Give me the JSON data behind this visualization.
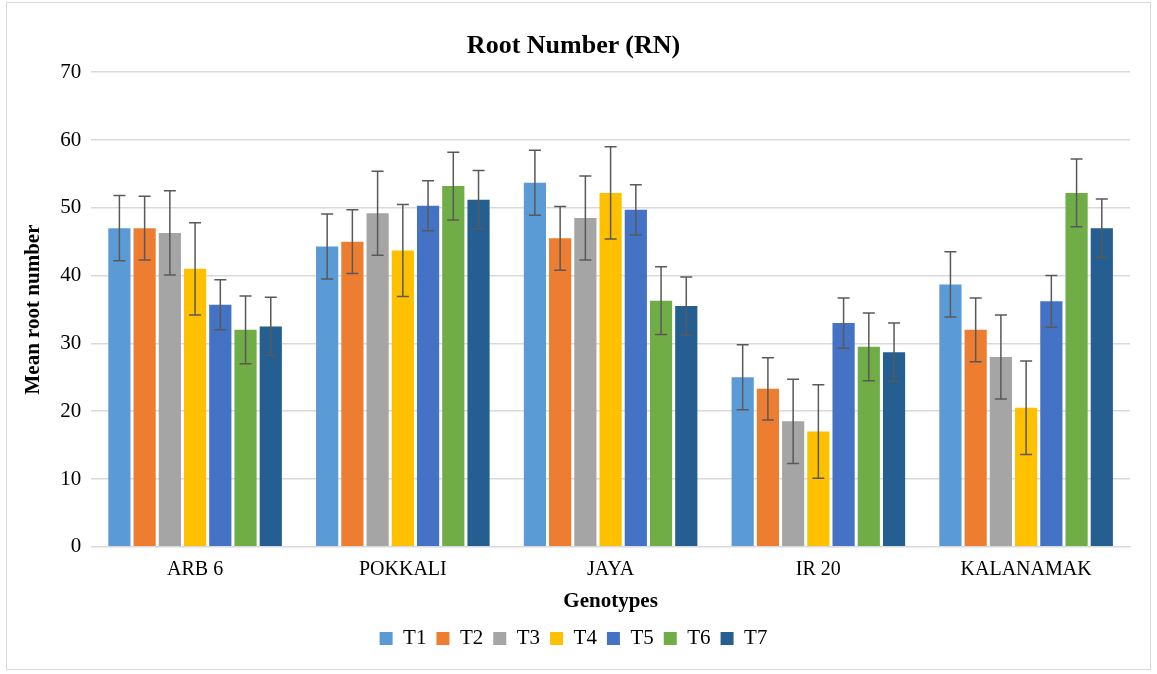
{
  "chart_data": {
    "type": "bar",
    "title": "Root Number (RN)",
    "xlabel": "Genotypes",
    "ylabel": "Mean root number",
    "categories": [
      "ARB 6",
      "POKKALI",
      "JAYA",
      "IR 20",
      "KALANAMAK"
    ],
    "ylim": [
      0,
      70
    ],
    "yticks": [
      0,
      10,
      20,
      30,
      40,
      50,
      60,
      70
    ],
    "grid": "y",
    "legend": "bottom",
    "series": [
      {
        "name": "T1",
        "color": "#5b9bd5",
        "values": [
          47,
          44.3,
          53.7,
          25,
          38.7
        ],
        "errors": [
          4.8,
          4.8,
          4.8,
          4.8,
          4.8
        ]
      },
      {
        "name": "T2",
        "color": "#ed7d31",
        "values": [
          47,
          45,
          45.5,
          23.3,
          32
        ],
        "errors": [
          4.7,
          4.7,
          4.7,
          4.6,
          4.7
        ]
      },
      {
        "name": "T3",
        "color": "#a5a5a5",
        "values": [
          46.3,
          49.2,
          48.5,
          18.5,
          28
        ],
        "errors": [
          6.2,
          6.2,
          6.2,
          6.2,
          6.2
        ]
      },
      {
        "name": "T4",
        "color": "#ffc000",
        "values": [
          41,
          43.7,
          52.2,
          17,
          20.5
        ],
        "errors": [
          6.8,
          6.8,
          6.8,
          6.9,
          6.9
        ]
      },
      {
        "name": "T5",
        "color": "#4472c4",
        "values": [
          35.7,
          50.3,
          49.7,
          33,
          36.2
        ],
        "errors": [
          3.7,
          3.7,
          3.7,
          3.7,
          3.8
        ]
      },
      {
        "name": "T6",
        "color": "#70ad47",
        "values": [
          32,
          53.2,
          36.3,
          29.5,
          52.2
        ],
        "errors": [
          5,
          5,
          5,
          5,
          5
        ]
      },
      {
        "name": "T7",
        "color": "#255e91",
        "values": [
          32.5,
          51.2,
          35.5,
          28.7,
          47
        ],
        "errors": [
          4.3,
          4.3,
          4.3,
          4.3,
          4.3
        ]
      }
    ]
  }
}
